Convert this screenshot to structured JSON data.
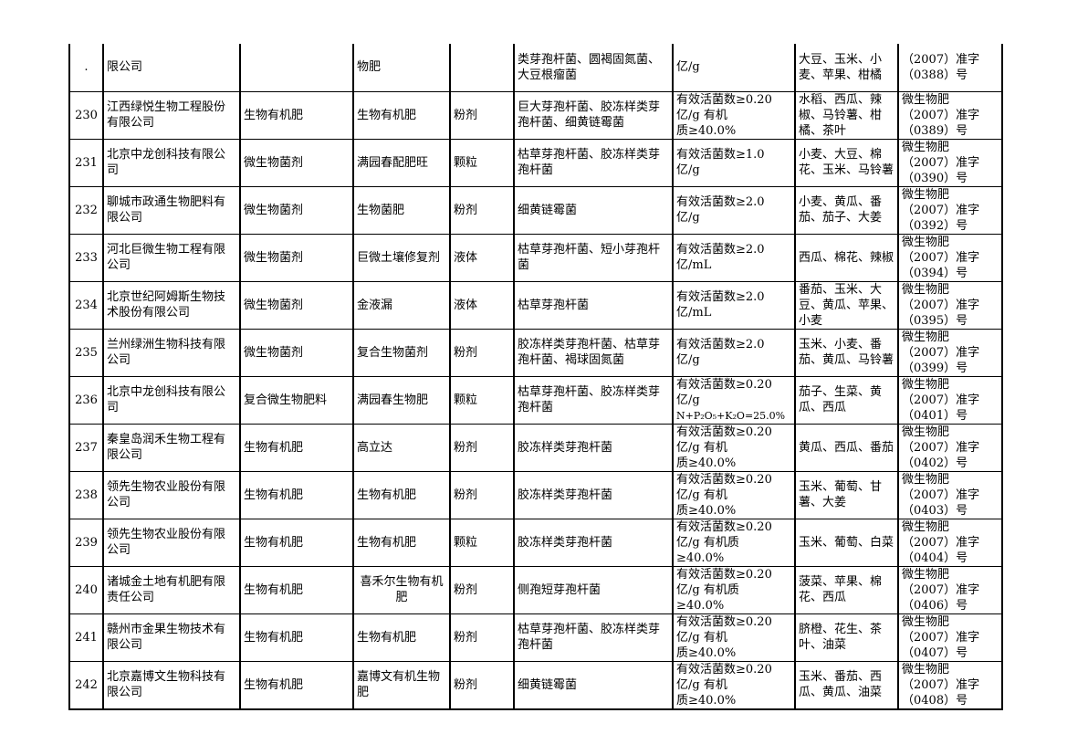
{
  "rows": [
    {
      "no": ".",
      "company": "限公司",
      "type": "",
      "name": "物肥",
      "form": "",
      "strains": "类芽孢杆菌、圆褐固氮菌、大豆根瘤菌",
      "indicators": [
        "亿/g"
      ],
      "crops": "大豆、玉米、小麦、苹果、柑橘",
      "reg": [
        "（2007）准字",
        "（0388）号"
      ]
    },
    {
      "no": "230",
      "company": "江西绿悦生物工程股份有限公司",
      "type": "生物有机肥",
      "name": "生物有机肥",
      "form": "粉剂",
      "strains": "巨大芽孢杆菌、胶冻样类芽孢杆菌、细黄链霉菌",
      "indicators": [
        "有效活菌数≥0.20",
        "亿/g 有机",
        "质≥40.0%"
      ],
      "crops": "水稻、西瓜、辣椒、马铃薯、柑橘、茶叶",
      "reg": [
        "微生物肥",
        "（2007）准字",
        "（0389）号"
      ]
    },
    {
      "no": "231",
      "company": "北京中龙创科技有限公司",
      "type": "微生物菌剂",
      "name": "满园春配肥旺",
      "form": "颗粒",
      "strains": "枯草芽孢杆菌、胶冻样类芽孢杆菌",
      "indicators": [
        "有效活菌数≥1.0",
        "亿/g"
      ],
      "crops": "小麦、大豆、棉花、玉米、马铃薯",
      "reg": [
        "微生物肥",
        "（2007）准字",
        "（0390）号"
      ]
    },
    {
      "no": "232",
      "company": "聊城市政通生物肥料有限公司",
      "type": "微生物菌剂",
      "name": "生物菌肥",
      "form": "粉剂",
      "strains": "细黄链霉菌",
      "indicators": [
        "有效活菌数≥2.0",
        "亿/g"
      ],
      "crops": "小麦、黄瓜、番茄、茄子、大姜",
      "reg": [
        "微生物肥",
        "（2007）准字",
        "（0392）号"
      ]
    },
    {
      "no": "233",
      "company": "河北巨微生物工程有限公司",
      "type": "微生物菌剂",
      "name": "巨微土壤修复剂",
      "form": "液体",
      "strains": "枯草芽孢杆菌、短小芽孢杆菌",
      "indicators": [
        "有效活菌数≥2.0",
        "亿/mL"
      ],
      "crops": "西瓜、棉花、辣椒",
      "reg": [
        "微生物肥",
        "（2007）准字",
        "（0394）号"
      ]
    },
    {
      "no": "234",
      "company": "北京世纪阿姆斯生物技术股份有限公司",
      "type": "微生物菌剂",
      "name": "金液漏",
      "form": "液体",
      "strains": "枯草芽孢杆菌",
      "indicators": [
        "有效活菌数≥2.0",
        "亿/mL"
      ],
      "crops": "番茄、玉米、大豆、黄瓜、苹果、小麦",
      "reg": [
        "微生物肥",
        "（2007）准字",
        "（0395）号"
      ]
    },
    {
      "no": "235",
      "company": "兰州绿洲生物科技有限公司",
      "type": "微生物菌剂",
      "name": "复合生物菌剂",
      "form": "粉剂",
      "strains": "胶冻样类芽孢杆菌、枯草芽孢杆菌、褐球固氮菌",
      "indicators": [
        "有效活菌数≥2.0",
        "亿/g"
      ],
      "crops": "玉米、小麦、番茄、黄瓜、马铃薯",
      "reg": [
        "微生物肥",
        "（2007）准字",
        "（0399）号"
      ]
    },
    {
      "no": "236",
      "company": "北京中龙创科技有限公司",
      "type": "复合微生物肥料",
      "name": "满园春生物肥",
      "form": "颗粒",
      "strains": "枯草芽孢杆菌、胶冻样类芽孢杆菌",
      "indicators": [
        "有效活菌数≥0.20",
        "亿/g",
        "N+P₂O₅+K₂O=25.0%"
      ],
      "crops": "茄子、生菜、黄瓜、西瓜",
      "reg": [
        "微生物肥",
        "（2007）准字",
        "（0401）号"
      ]
    },
    {
      "no": "237",
      "company": "秦皇岛润禾生物工程有限公司",
      "type": "生物有机肥",
      "name": "高立达",
      "form": "粉剂",
      "strains": "胶冻样类芽孢杆菌",
      "indicators": [
        "有效活菌数≥0.20",
        "亿/g 有机",
        "质≥40.0%"
      ],
      "crops": "黄瓜、西瓜、番茄",
      "reg": [
        "微生物肥",
        "（2007）准字",
        "（0402）号"
      ]
    },
    {
      "no": "238",
      "company": "领先生物农业股份有限公司",
      "type": "生物有机肥",
      "name": "生物有机肥",
      "form": "粉剂",
      "strains": "胶冻样类芽孢杆菌",
      "indicators": [
        "有效活菌数≥0.20",
        "亿/g 有机",
        "质≥40.0%"
      ],
      "crops": "玉米、葡萄、甘薯、大姜",
      "reg": [
        "微生物肥",
        "（2007）准字",
        "（0403）号"
      ]
    },
    {
      "no": "239",
      "company": "领先生物农业股份有限公司",
      "type": "生物有机肥",
      "name": "生物有机肥",
      "form": "颗粒",
      "strains": "胶冻样类芽孢杆菌",
      "indicators": [
        "有效活菌数≥0.20",
        "亿/g 有机质",
        "≥40.0%"
      ],
      "crops": "玉米、葡萄、白菜",
      "reg": [
        "微生物肥",
        "（2007）准字",
        "（0404）号"
      ]
    },
    {
      "no": "240",
      "company": "诸城金土地有机肥有限责任公司",
      "type": "生物有机肥",
      "name": "喜禾尔生物有机肥",
      "form": "粉剂",
      "strains": "侧孢短芽孢杆菌",
      "indicators": [
        "有效活菌数≥0.20",
        "亿/g 有机质",
        "≥40.0%"
      ],
      "crops": "菠菜、苹果、棉花、西瓜",
      "reg": [
        "微生物肥",
        "（2007）准字",
        "（0406）号"
      ]
    },
    {
      "no": "241",
      "company": "赣州市金果生物技术有限公司",
      "type": "生物有机肥",
      "name": "生物有机肥",
      "form": "粉剂",
      "strains": "枯草芽孢杆菌、胶冻样类芽孢杆菌",
      "indicators": [
        "有效活菌数≥0.20",
        "亿/g 有机",
        "质≥40.0%"
      ],
      "crops": "脐橙、花生、茶叶、油菜",
      "reg": [
        "微生物肥",
        "（2007）准字",
        "（0407）号"
      ]
    },
    {
      "no": "242",
      "company": "北京嘉博文生物科技有限公司",
      "type": "生物有机肥",
      "name": "嘉博文有机生物肥",
      "form": "粉剂",
      "strains": "细黄链霉菌",
      "indicators": [
        "有效活菌数≥0.20",
        "亿/g 有机",
        "质≥40.0%"
      ],
      "crops": "玉米、番茄、西瓜、黄瓜、油菜",
      "reg": [
        "微生物肥",
        "（2007）准字",
        "（0408）号"
      ]
    }
  ]
}
